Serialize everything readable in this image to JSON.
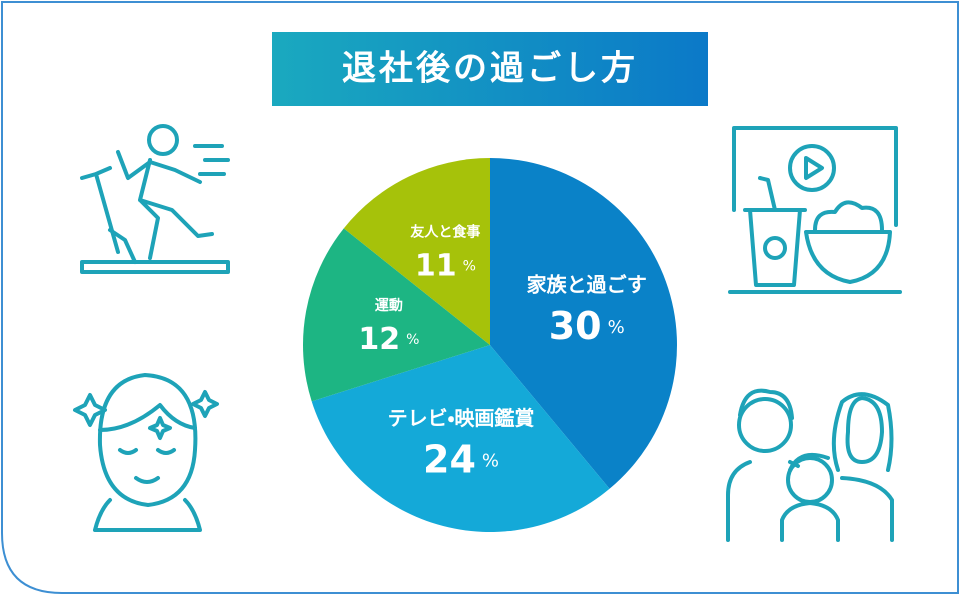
{
  "chart_data": {
    "type": "pie",
    "title": "退社後の過ごし方",
    "categories": [
      "家族と過ごす",
      "テレビ・映画鑑賞",
      "運動",
      "友人と食事"
    ],
    "values": [
      30,
      24,
      12,
      11
    ],
    "value_labels": [
      "30%",
      "24%",
      "12%",
      "11%"
    ],
    "colors": [
      "#0a82c8",
      "#14a9d8",
      "#1db583",
      "#a6c20a"
    ]
  }
}
